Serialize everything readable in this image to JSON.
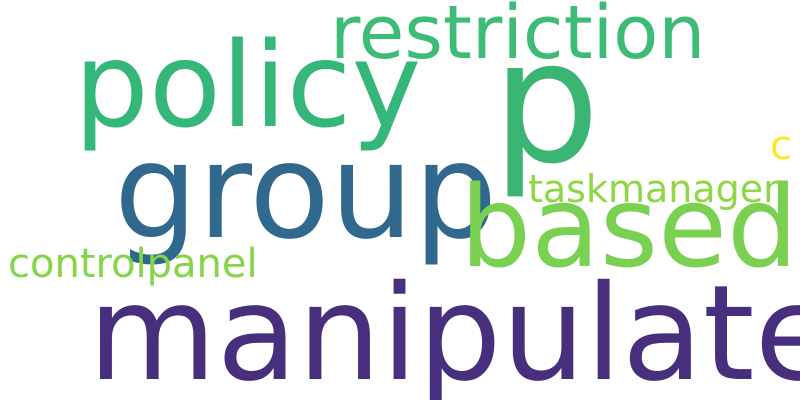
{
  "wordcloud": {
    "words": [
      {
        "id": "manipulate",
        "text": "manipulate",
        "color": "#472f7d"
      },
      {
        "id": "group",
        "text": "group",
        "color": "#31688e"
      },
      {
        "id": "policy",
        "text": "policy",
        "color": "#35b779"
      },
      {
        "id": "p",
        "text": "p",
        "color": "#3bb574"
      },
      {
        "id": "restriction",
        "text": "restriction",
        "color": "#3cbc75"
      },
      {
        "id": "based",
        "text": "based",
        "color": "#7ad151"
      },
      {
        "id": "controlpanel",
        "text": "controlpanel",
        "color": "#86d549"
      },
      {
        "id": "taskmanager",
        "text": "taskmanager",
        "color": "#8fd744"
      },
      {
        "id": "c",
        "text": "c",
        "color": "#fde725"
      }
    ]
  }
}
